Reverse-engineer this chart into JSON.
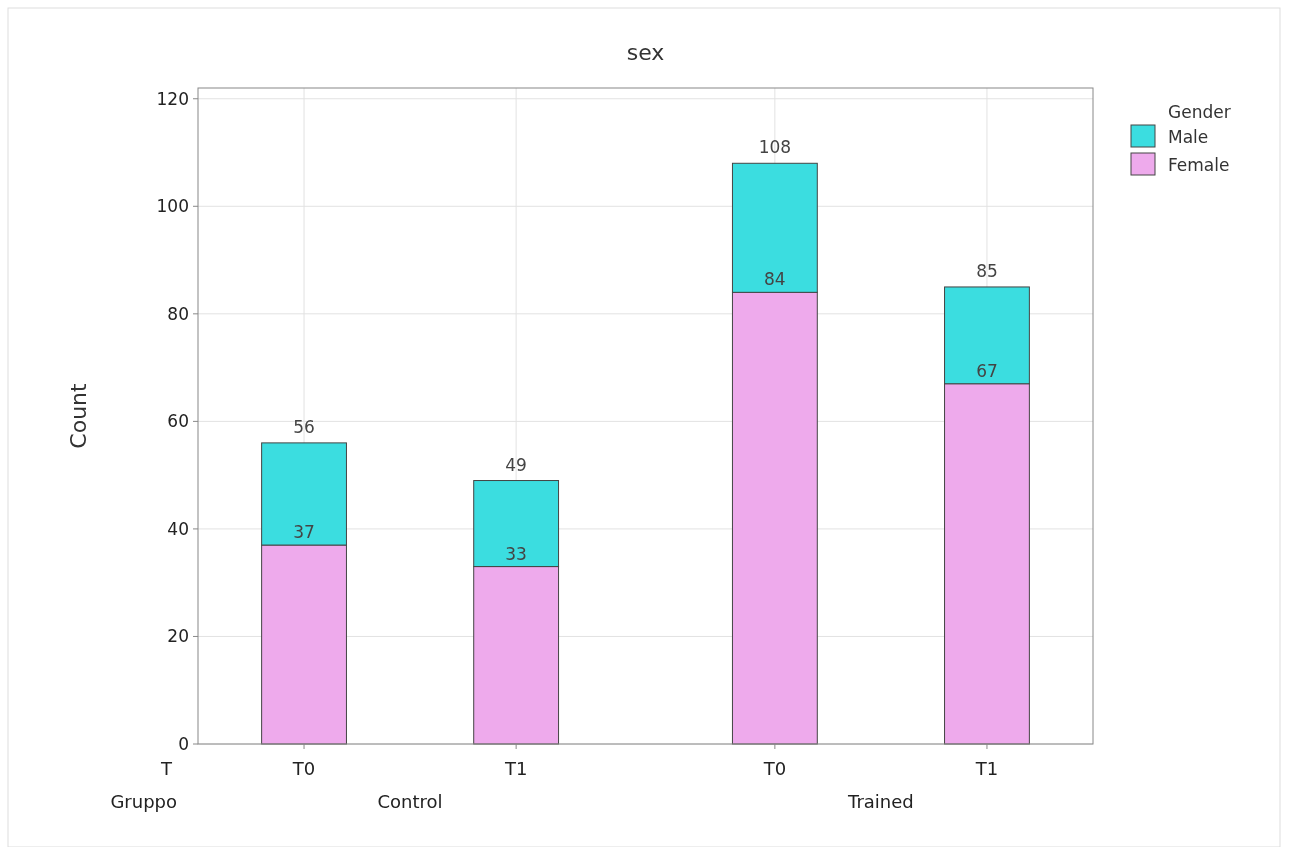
{
  "chart_data": {
    "type": "bar",
    "title": "sex",
    "ylabel": "Count",
    "legend_title": "Gender",
    "categories": [
      "T0",
      "T1",
      "T0",
      "T1"
    ],
    "annotations": [
      "T",
      "Gruppo",
      "Control",
      "Trained"
    ],
    "stacked": true,
    "series": [
      {
        "name": "Female",
        "color": "#eeaaec",
        "values": [
          37,
          33,
          84,
          67
        ],
        "value_labels": [
          "37",
          "33",
          "84",
          "67"
        ]
      },
      {
        "name": "Male",
        "color": "#3bdde0",
        "values": [
          19,
          16,
          24,
          18
        ]
      }
    ],
    "totals": [
      "56",
      "49",
      "108",
      "85"
    ],
    "ylim": [
      0,
      122
    ],
    "yticks": [
      0,
      20,
      40,
      60,
      80,
      100,
      120
    ],
    "grid": true,
    "legend": "top right"
  }
}
